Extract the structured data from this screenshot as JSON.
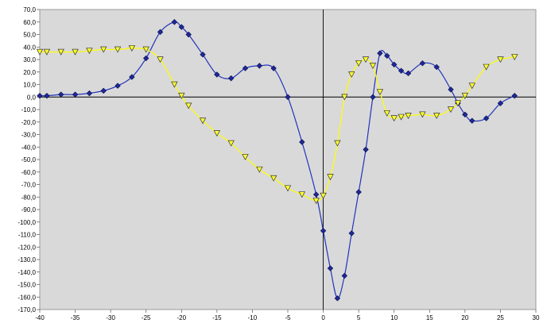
{
  "chart_data": {
    "type": "line",
    "title": "",
    "xlabel": "",
    "ylabel": "",
    "xlim": [
      -40,
      30
    ],
    "ylim": [
      -170,
      70
    ],
    "grid": false,
    "plot_background": "#d9d9d9",
    "x_ticks": [
      -40,
      -35,
      -30,
      -25,
      -20,
      -15,
      -10,
      -5,
      0,
      5,
      10,
      15,
      20,
      25,
      30
    ],
    "x_tick_labels": [
      "-40",
      "-35",
      "-30",
      "-25",
      "-20",
      "-15",
      "-10",
      "-5",
      "0",
      "5",
      "10",
      "15",
      "20",
      "25",
      "30"
    ],
    "y_ticks": [
      70,
      60,
      50,
      40,
      30,
      20,
      10,
      0,
      -10,
      -20,
      -30,
      -40,
      -50,
      -60,
      -70,
      -80,
      -90,
      -100,
      -110,
      -120,
      -130,
      -140,
      -150,
      -160,
      -170
    ],
    "y_tick_labels": [
      "70,0",
      "60,0",
      "50,0",
      "40,0",
      "30,0",
      "20,0",
      "10,0",
      "0,0",
      "-10,0",
      "-20,0",
      "-30,0",
      "-40,0",
      "-50,0",
      "-60,0",
      "-70,0",
      "-80,0",
      "-90,0",
      "-100,0",
      "-110,0",
      "-120,0",
      "-130,0",
      "-140,0",
      "-150,0",
      "-160,0",
      "-170,0"
    ],
    "series": [
      {
        "marker": "diamond",
        "color": "#2233bb",
        "marker_fill": "#1f2a99",
        "x": [
          -40,
          -39,
          -37,
          -35,
          -33,
          -31,
          -29,
          -27,
          -25,
          -23,
          -21,
          -20,
          -19,
          -17,
          -15,
          -13,
          -11,
          -9,
          -7,
          -5,
          -3,
          -1,
          0,
          1,
          2,
          3,
          4,
          5,
          6,
          7,
          8,
          9,
          10,
          11,
          12,
          14,
          16,
          18,
          19,
          20,
          21,
          23,
          25,
          27
        ],
        "y": [
          1,
          1,
          2,
          2,
          3,
          5,
          9,
          16,
          31,
          52,
          60,
          56,
          50,
          34,
          18,
          15,
          23,
          25,
          23,
          0,
          -36,
          -78,
          -107,
          -137,
          -161,
          -143,
          -109,
          -76,
          -42,
          0,
          35,
          33,
          26,
          21,
          19,
          27,
          24,
          6,
          -5,
          -14,
          -19,
          -17,
          -5,
          1
        ]
      },
      {
        "marker": "triangle-down",
        "color": "#ffff00",
        "marker_fill": "#ffff33",
        "x": [
          -40,
          -39,
          -37,
          -35,
          -33,
          -31,
          -29,
          -27,
          -25,
          -23,
          -21,
          -20,
          -19,
          -17,
          -15,
          -13,
          -11,
          -9,
          -7,
          -5,
          -3,
          -1,
          0,
          1,
          2,
          3,
          4,
          5,
          6,
          7,
          8,
          9,
          10,
          11,
          12,
          14,
          16,
          18,
          19,
          20,
          21,
          23,
          25,
          27
        ],
        "y": [
          36,
          36,
          36,
          36,
          37,
          38,
          38,
          39,
          38,
          30,
          10,
          1,
          -7,
          -19,
          -29,
          -37,
          -48,
          -58,
          -65,
          -73,
          -78,
          -83,
          -79,
          -64,
          -37,
          0,
          18,
          27,
          30,
          25,
          4,
          -13,
          -17,
          -16,
          -15,
          -14,
          -15,
          -10,
          -5,
          1,
          9,
          24,
          30,
          32
        ]
      }
    ]
  }
}
